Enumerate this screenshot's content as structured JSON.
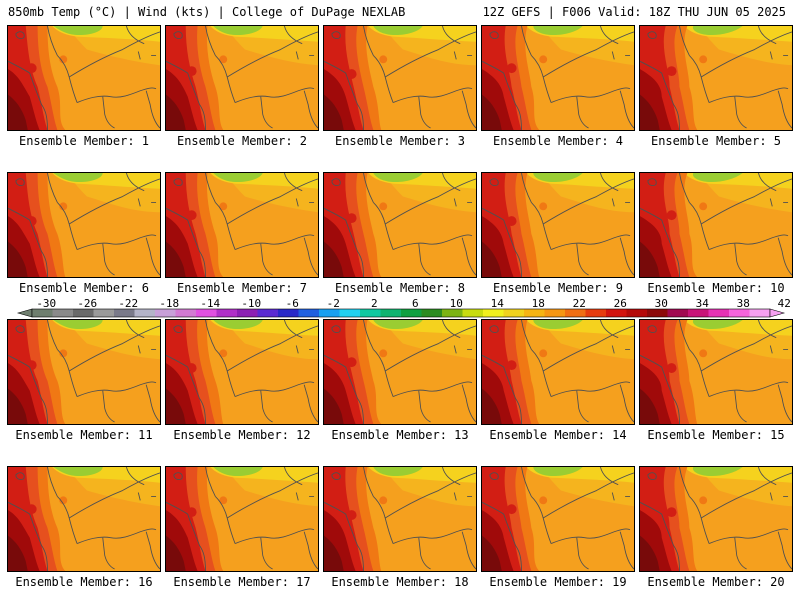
{
  "header": {
    "left_title": "850mb Temp (°C) | Wind (kts) | College of DuPage NEXLAB",
    "right_title": "12Z GEFS | F006 Valid: 18Z THU JUN 05 2025"
  },
  "members": [
    {
      "label": "Ensemble Member: 1"
    },
    {
      "label": "Ensemble Member: 2"
    },
    {
      "label": "Ensemble Member: 3"
    },
    {
      "label": "Ensemble Member: 4"
    },
    {
      "label": "Ensemble Member: 5"
    },
    {
      "label": "Ensemble Member: 6"
    },
    {
      "label": "Ensemble Member: 7"
    },
    {
      "label": "Ensemble Member: 8"
    },
    {
      "label": "Ensemble Member: 9"
    },
    {
      "label": "Ensemble Member: 10"
    },
    {
      "label": "Ensemble Member: 11"
    },
    {
      "label": "Ensemble Member: 12"
    },
    {
      "label": "Ensemble Member: 13"
    },
    {
      "label": "Ensemble Member: 14"
    },
    {
      "label": "Ensemble Member: 15"
    },
    {
      "label": "Ensemble Member: 16"
    },
    {
      "label": "Ensemble Member: 17"
    },
    {
      "label": "Ensemble Member: 18"
    },
    {
      "label": "Ensemble Member: 19"
    },
    {
      "label": "Ensemble Member: 20"
    }
  ],
  "colorbar": {
    "tick_labels": [
      "-30",
      "-26",
      "-22",
      "-18",
      "-14",
      "-10",
      "-6",
      "-2",
      "2",
      "6",
      "10",
      "14",
      "18",
      "22",
      "26",
      "30",
      "34",
      "38",
      "42"
    ],
    "colors": [
      "#6f7f6f",
      "#8a8a8a",
      "#6a6a6a",
      "#9a9a9a",
      "#7a7a8a",
      "#b4b4c8",
      "#c8a0d8",
      "#d27ad2",
      "#e050e0",
      "#b030c8",
      "#8c20b4",
      "#5a2ad2",
      "#2828c8",
      "#2060e0",
      "#18a0f0",
      "#20d0f0",
      "#10c8a0",
      "#10b470",
      "#10a040",
      "#2c8c20",
      "#7cb414",
      "#c8dc10",
      "#f0f01e",
      "#f0d21e",
      "#f5b414",
      "#f59614",
      "#f06e14",
      "#e63c0f",
      "#d2140f",
      "#b40a0a",
      "#8c0a0a",
      "#a00a50",
      "#c81478",
      "#e632b4",
      "#f564dc",
      "#f5a0f0"
    ]
  },
  "map_colors": {
    "lime": "#9acd32",
    "yellow": "#f5d21e",
    "light_orange": "#f5b41e",
    "orange": "#f5a01e",
    "dark_orange": "#f07814",
    "red_orange": "#e6501e",
    "red": "#d21e14",
    "dark_red": "#a00a0a",
    "maroon": "#780a0a",
    "boundary": "#505050"
  }
}
